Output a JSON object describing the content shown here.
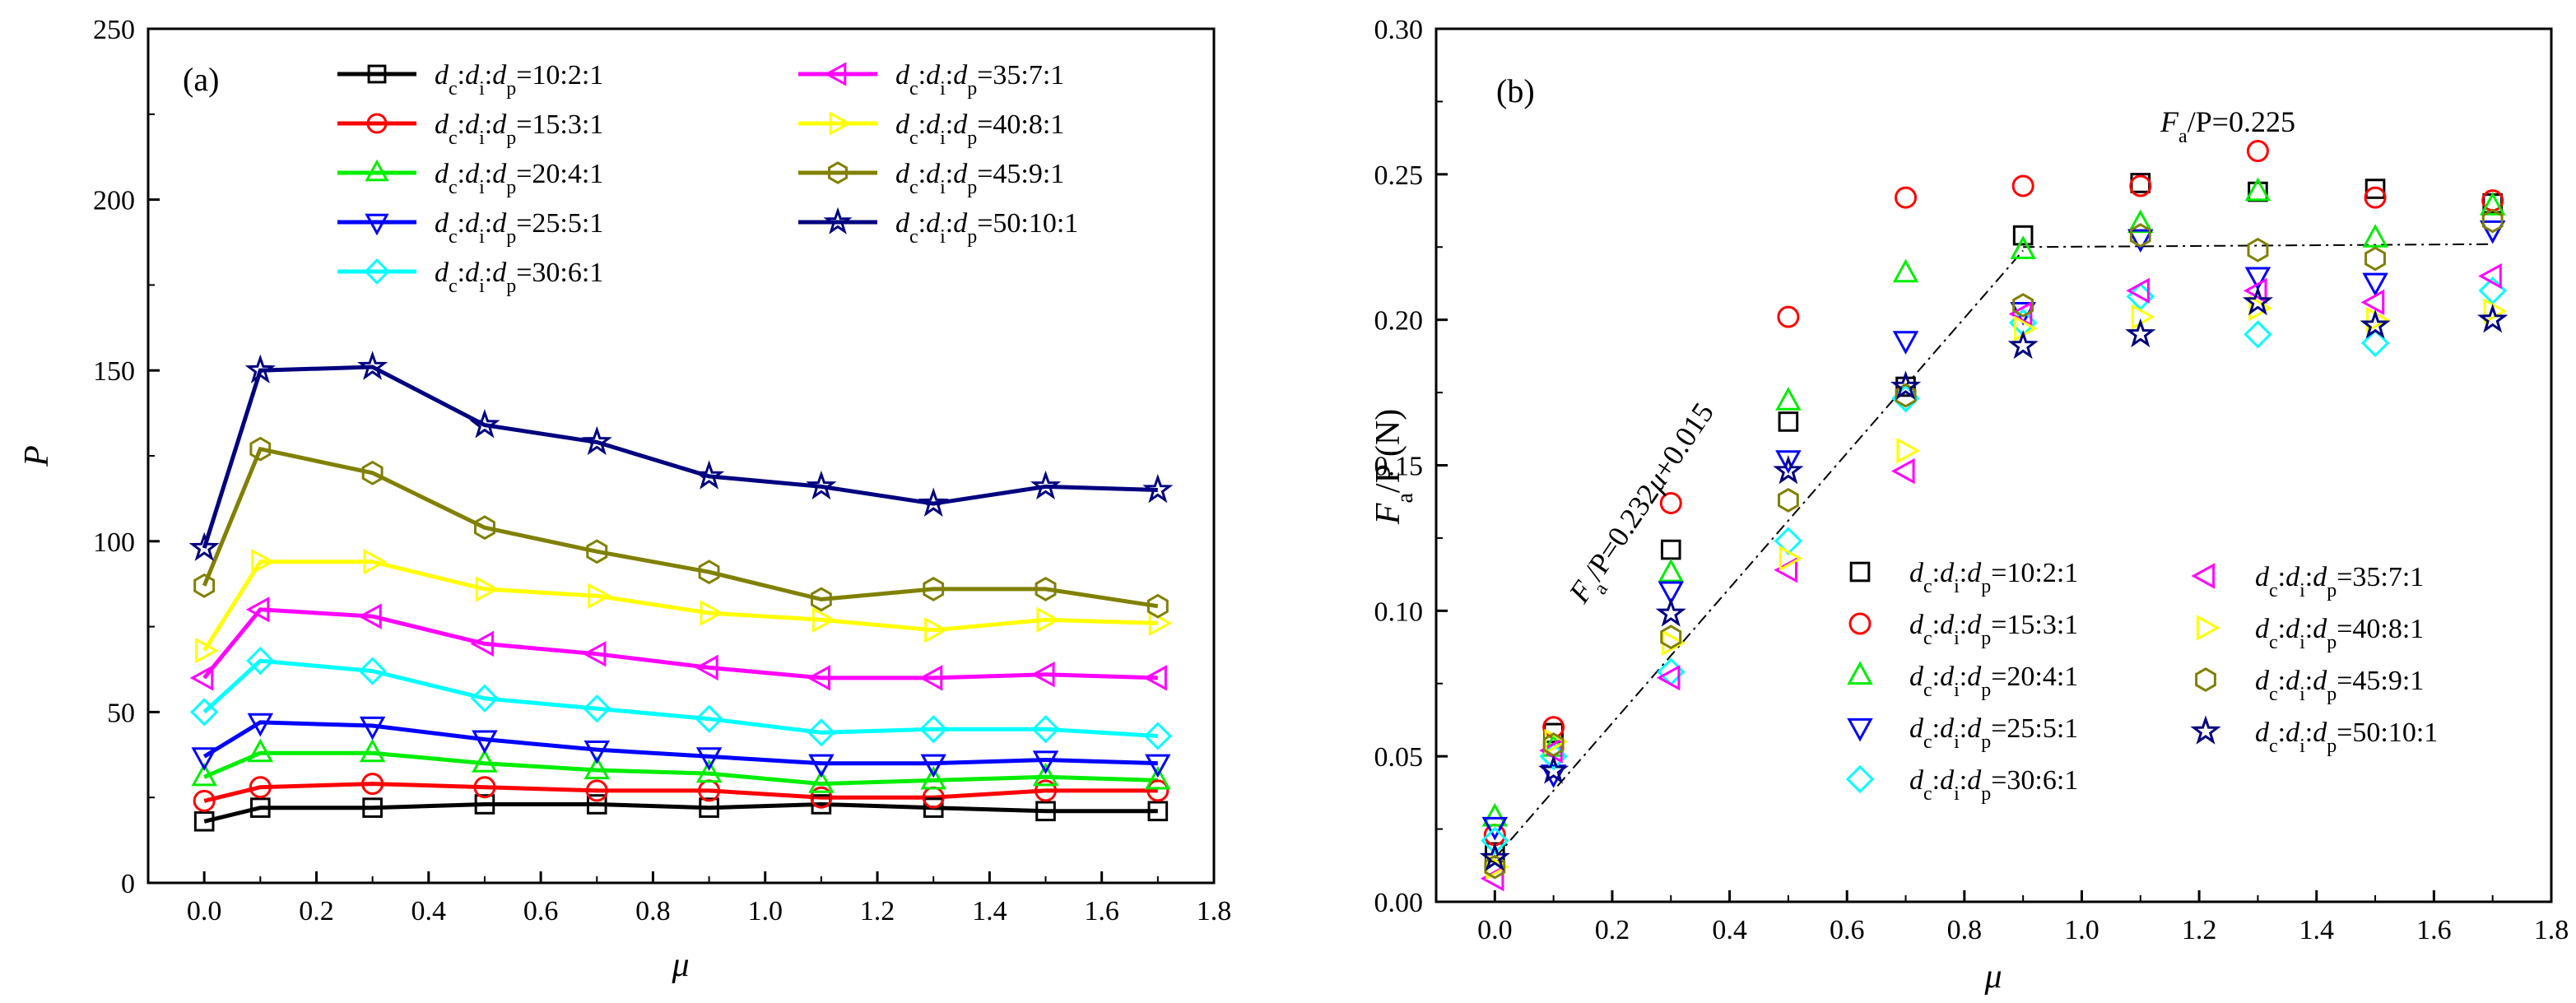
{
  "colors": {
    "s1": "#000000",
    "s2": "#ff0000",
    "s3": "#00ee00",
    "s4": "#0000ff",
    "s5": "#00ffff",
    "s6": "#ff00ff",
    "s7": "#ffff00",
    "s8": "#808000",
    "s9": "#000080",
    "axis": "#000000",
    "fitline": "#000000"
  },
  "chart_data": [
    {
      "panel_label": "(a)",
      "type": "line",
      "xlabel": "μ",
      "ylabel": "P",
      "xlim": [
        -0.1,
        1.8
      ],
      "ylim": [
        0,
        250
      ],
      "xticks": [
        "0.0",
        "0.2",
        "0.4",
        "0.6",
        "0.8",
        "1.0",
        "1.2",
        "1.4",
        "1.6",
        "1.8"
      ],
      "yticks": [
        "0",
        "50",
        "100",
        "150",
        "200",
        "250"
      ],
      "legend_position": "top",
      "x": [
        0.0,
        0.1,
        0.3,
        0.5,
        0.7,
        0.9,
        1.1,
        1.3,
        1.5,
        1.7
      ],
      "series": [
        {
          "name_prefix": "d",
          "name": "10:2:1",
          "color_key": "s1",
          "marker": "square",
          "values": [
            18,
            22,
            22,
            23,
            23,
            22,
            23,
            22,
            21,
            21
          ]
        },
        {
          "name_prefix": "d",
          "name": "15:3:1",
          "color_key": "s2",
          "marker": "circle",
          "values": [
            24,
            28,
            29,
            28,
            27,
            27,
            25,
            25,
            27,
            27
          ]
        },
        {
          "name_prefix": "d",
          "name": "20:4:1",
          "color_key": "s3",
          "marker": "triangle-up",
          "values": [
            31,
            38,
            38,
            35,
            33,
            32,
            29,
            30,
            31,
            30
          ]
        },
        {
          "name_prefix": "d",
          "name": "25:5:1",
          "color_key": "s4",
          "marker": "triangle-down",
          "values": [
            37,
            47,
            46,
            42,
            39,
            37,
            35,
            35,
            36,
            35
          ]
        },
        {
          "name_prefix": "d",
          "name": "30:6:1",
          "color_key": "s5",
          "marker": "diamond",
          "values": [
            50,
            65,
            62,
            54,
            51,
            48,
            44,
            45,
            45,
            43
          ]
        },
        {
          "name_prefix": "d",
          "name": "35:7:1",
          "color_key": "s6",
          "marker": "triangle-left",
          "values": [
            60,
            80,
            78,
            70,
            67,
            63,
            60,
            60,
            61,
            60
          ]
        },
        {
          "name_prefix": "d",
          "name": "40:8:1",
          "color_key": "s7",
          "marker": "triangle-right",
          "values": [
            68,
            94,
            94,
            86,
            84,
            79,
            77,
            74,
            77,
            76
          ]
        },
        {
          "name_prefix": "d",
          "name": "45:9:1",
          "color_key": "s8",
          "marker": "hexagon",
          "values": [
            87,
            127,
            120,
            104,
            97,
            91,
            83,
            86,
            86,
            81
          ]
        },
        {
          "name_prefix": "d",
          "name": "50:10:1",
          "color_key": "s9",
          "marker": "star",
          "values": [
            98,
            150,
            151,
            134,
            129,
            119,
            116,
            111,
            116,
            115
          ]
        }
      ]
    },
    {
      "panel_label": "(b)",
      "type": "scatter",
      "xlabel": "μ",
      "ylabel": "F",
      "ylabel_sub": "a",
      "ylabel_rest": "/P (N)",
      "xlim": [
        -0.1,
        1.8
      ],
      "ylim": [
        0,
        0.3
      ],
      "xticks": [
        "0.0",
        "0.2",
        "0.4",
        "0.6",
        "0.8",
        "1.0",
        "1.2",
        "1.4",
        "1.6",
        "1.8"
      ],
      "yticks": [
        "0.00",
        "0.05",
        "0.10",
        "0.15",
        "0.20",
        "0.25",
        "0.30"
      ],
      "legend_position": "bottom-right",
      "x": [
        0.0,
        0.1,
        0.3,
        0.5,
        0.7,
        0.9,
        1.1,
        1.3,
        1.5,
        1.7
      ],
      "series": [
        {
          "name_prefix": "d",
          "name": "10:2:1",
          "color_key": "s1",
          "marker": "square",
          "values": [
            0.017,
            0.058,
            0.121,
            0.165,
            0.177,
            0.229,
            0.247,
            0.244,
            0.245,
            0.24
          ]
        },
        {
          "name_prefix": "d",
          "name": "15:3:1",
          "color_key": "s2",
          "marker": "circle",
          "values": [
            0.023,
            0.06,
            0.137,
            0.201,
            0.242,
            0.246,
            0.246,
            0.258,
            0.242,
            0.241
          ]
        },
        {
          "name_prefix": "d",
          "name": "20:4:1",
          "color_key": "s3",
          "marker": "triangle-up",
          "values": [
            0.029,
            0.053,
            0.113,
            0.172,
            0.216,
            0.224,
            0.233,
            0.244,
            0.228,
            0.239
          ]
        },
        {
          "name_prefix": "d",
          "name": "25:5:1",
          "color_key": "s4",
          "marker": "triangle-down",
          "values": [
            0.026,
            0.044,
            0.107,
            0.152,
            0.193,
            0.203,
            0.228,
            0.215,
            0.213,
            0.231
          ]
        },
        {
          "name_prefix": "d",
          "name": "30:6:1",
          "color_key": "s5",
          "marker": "diamond",
          "values": [
            0.021,
            0.05,
            0.079,
            0.124,
            0.173,
            0.199,
            0.208,
            0.195,
            0.192,
            0.21
          ]
        },
        {
          "name_prefix": "d",
          "name": "35:7:1",
          "color_key": "s6",
          "marker": "triangle-left",
          "values": [
            0.008,
            0.052,
            0.077,
            0.114,
            0.148,
            0.202,
            0.21,
            0.21,
            0.206,
            0.215
          ]
        },
        {
          "name_prefix": "d",
          "name": "40:8:1",
          "color_key": "s7",
          "marker": "triangle-right",
          "values": [
            0.012,
            0.055,
            0.089,
            0.118,
            0.155,
            0.197,
            0.201,
            0.204,
            0.2,
            0.203
          ]
        },
        {
          "name_prefix": "d",
          "name": "45:9:1",
          "color_key": "s8",
          "marker": "hexagon",
          "values": [
            0.012,
            0.054,
            0.091,
            0.138,
            0.174,
            0.205,
            0.229,
            0.224,
            0.221,
            0.234
          ]
        },
        {
          "name_prefix": "d",
          "name": "50:10:1",
          "color_key": "s9",
          "marker": "star",
          "values": [
            0.015,
            0.045,
            0.099,
            0.148,
            0.177,
            0.191,
            0.195,
            0.206,
            0.198,
            0.2
          ]
        }
      ],
      "fit_lines": [
        {
          "from": [
            0.0,
            0.015
          ],
          "to": [
            0.9,
            0.2238
          ]
        },
        {
          "from": [
            0.9,
            0.225
          ],
          "to": [
            1.7,
            0.226
          ]
        }
      ],
      "annotations": {
        "linear": {
          "pre": "F",
          "sub": "a",
          "mid": "/P=0.232",
          "mu": "μ",
          "post": "+0.015"
        },
        "plateau": {
          "pre": "F",
          "sub": "a",
          "rest": "/P=0.225"
        }
      }
    }
  ]
}
